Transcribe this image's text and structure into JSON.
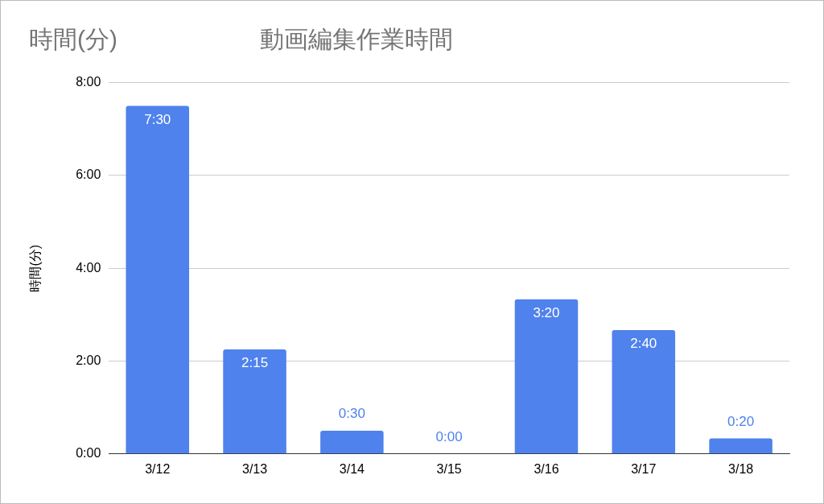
{
  "chart_data": {
    "type": "bar",
    "title": "動画編集作業時間",
    "ylabel": "時間(分)",
    "annotations": [
      "時間(分)"
    ],
    "categories": [
      "3/12",
      "3/13",
      "3/14",
      "3/15",
      "3/16",
      "3/17",
      "3/18"
    ],
    "values": [
      7.5,
      2.25,
      0.5,
      0,
      3.333,
      2.667,
      0.333
    ],
    "value_labels": [
      "7:30",
      "2:15",
      "0:30",
      "0:00",
      "3:20",
      "2:40",
      "0:20"
    ],
    "color": "#4f82ec",
    "ylim": [
      0,
      8
    ],
    "yticks": [
      {
        "value": 0,
        "label": "0:00"
      },
      {
        "value": 2,
        "label": "2:00"
      },
      {
        "value": 4,
        "label": "4:00"
      },
      {
        "value": 6,
        "label": "6:00"
      },
      {
        "value": 8,
        "label": "8:00"
      }
    ],
    "grid": "y",
    "legend": false
  }
}
